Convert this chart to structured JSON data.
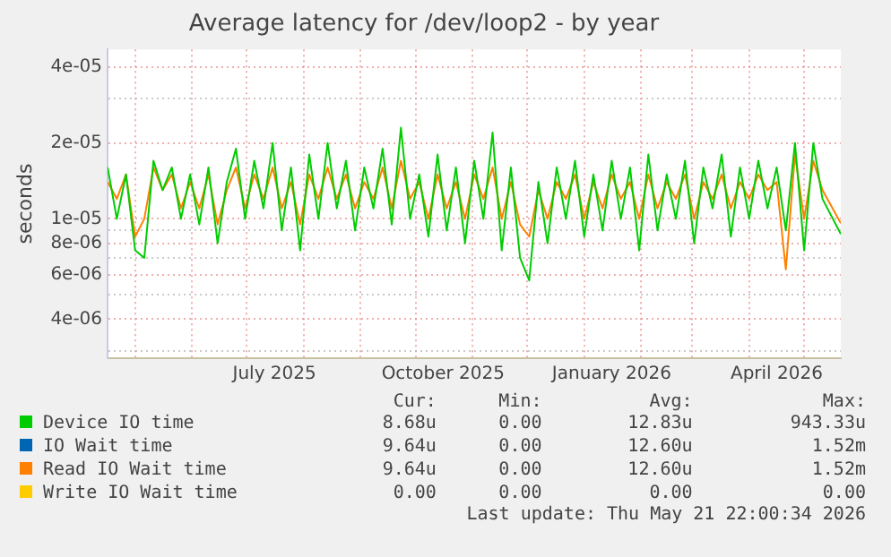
{
  "chart_data": {
    "type": "line",
    "title": "Average latency for /dev/loop2 - by year",
    "ylabel": "seconds",
    "log": "y",
    "grid": true,
    "legend": "bottom",
    "marker": "none",
    "line_style": "solid",
    "x": [
      "2025-04-16",
      "2025-04-21",
      "2025-04-26",
      "2025-05-01",
      "2025-05-06",
      "2025-05-11",
      "2025-05-16",
      "2025-05-21",
      "2025-05-26",
      "2025-05-31",
      "2025-06-05",
      "2025-06-10",
      "2025-06-15",
      "2025-06-20",
      "2025-06-25",
      "2025-06-30",
      "2025-07-05",
      "2025-07-10",
      "2025-07-15",
      "2025-07-20",
      "2025-07-25",
      "2025-07-30",
      "2025-08-04",
      "2025-08-09",
      "2025-08-14",
      "2025-08-19",
      "2025-08-24",
      "2025-08-29",
      "2025-09-03",
      "2025-09-08",
      "2025-09-13",
      "2025-09-18",
      "2025-09-23",
      "2025-09-28",
      "2025-10-03",
      "2025-10-08",
      "2025-10-13",
      "2025-10-18",
      "2025-10-23",
      "2025-10-28",
      "2025-11-02",
      "2025-11-07",
      "2025-11-12",
      "2025-11-17",
      "2025-11-22",
      "2025-11-27",
      "2025-12-02",
      "2025-12-07",
      "2025-12-12",
      "2025-12-17",
      "2025-12-22",
      "2025-12-27",
      "2026-01-01",
      "2026-01-06",
      "2026-01-11",
      "2026-01-16",
      "2026-01-21",
      "2026-01-26",
      "2026-01-31",
      "2026-02-05",
      "2026-02-10",
      "2026-02-15",
      "2026-02-20",
      "2026-02-25",
      "2026-03-02",
      "2026-03-07",
      "2026-03-12",
      "2026-03-17",
      "2026-03-22",
      "2026-03-27",
      "2026-04-01",
      "2026-04-06",
      "2026-04-11",
      "2026-04-16",
      "2026-04-21",
      "2026-04-26",
      "2026-05-01",
      "2026-05-06",
      "2026-05-11",
      "2026-05-21"
    ],
    "series": [
      {
        "name": "Device IO time",
        "color": "#00cc00",
        "values": [
          1.6e-05,
          1e-05,
          1.5e-05,
          7.5e-06,
          7e-06,
          1.7e-05,
          1.3e-05,
          1.6e-05,
          1e-05,
          1.5e-05,
          9.5e-06,
          1.6e-05,
          8e-06,
          1.4e-05,
          1.9e-05,
          1e-05,
          1.7e-05,
          1.1e-05,
          2e-05,
          9e-06,
          1.6e-05,
          7.5e-06,
          1.8e-05,
          1e-05,
          2e-05,
          1.1e-05,
          1.7e-05,
          9e-06,
          1.6e-05,
          1.1e-05,
          1.9e-05,
          9.5e-06,
          2.3e-05,
          1e-05,
          1.5e-05,
          8.5e-06,
          1.8e-05,
          9e-06,
          1.6e-05,
          8e-06,
          1.7e-05,
          1e-05,
          2.2e-05,
          7.5e-06,
          1.6e-05,
          7e-06,
          5.7e-06,
          1.4e-05,
          8e-06,
          1.6e-05,
          1e-05,
          1.7e-05,
          8.5e-06,
          1.5e-05,
          9e-06,
          1.7e-05,
          1e-05,
          1.6e-05,
          7.5e-06,
          1.8e-05,
          9e-06,
          1.5e-05,
          1e-05,
          1.7e-05,
          8e-06,
          1.6e-05,
          1.1e-05,
          1.8e-05,
          8.5e-06,
          1.6e-05,
          1e-05,
          1.7e-05,
          1.1e-05,
          1.6e-05,
          9e-06,
          2e-05,
          7.5e-06,
          2e-05,
          1.2e-05,
          8.7e-06
        ]
      },
      {
        "name": "IO Wait time",
        "color": "#0066b3",
        "values": [
          null,
          null,
          null,
          null,
          null,
          null,
          null,
          null,
          null,
          null,
          null,
          null,
          null,
          null,
          null,
          null,
          null,
          null,
          null,
          null,
          null,
          null,
          null,
          null,
          null,
          null,
          null,
          null,
          null,
          null,
          null,
          null,
          null,
          null,
          null,
          null,
          null,
          null,
          null,
          null,
          null,
          null,
          null,
          null,
          null,
          null,
          null,
          null,
          null,
          null,
          null,
          null,
          null,
          null,
          null,
          null,
          null,
          null,
          null,
          null,
          null,
          null,
          null,
          null,
          null,
          null,
          null,
          null,
          null,
          null,
          null,
          null,
          null,
          null,
          null,
          null,
          null,
          null,
          null,
          null
        ]
      },
      {
        "name": "Read IO Wait time",
        "color": "#ff8000",
        "values": [
          1.4e-05,
          1.2e-05,
          1.5e-05,
          8.5e-06,
          1e-05,
          1.6e-05,
          1.3e-05,
          1.5e-05,
          1.1e-05,
          1.4e-05,
          1.1e-05,
          1.5e-05,
          9.5e-06,
          1.3e-05,
          1.6e-05,
          1.1e-05,
          1.5e-05,
          1.2e-05,
          1.6e-05,
          1.1e-05,
          1.4e-05,
          9.5e-06,
          1.5e-05,
          1.2e-05,
          1.6e-05,
          1.2e-05,
          1.5e-05,
          1.1e-05,
          1.4e-05,
          1.2e-05,
          1.6e-05,
          1.1e-05,
          1.7e-05,
          1.2e-05,
          1.4e-05,
          1e-05,
          1.5e-05,
          1.1e-05,
          1.4e-05,
          1e-05,
          1.5e-05,
          1.2e-05,
          1.6e-05,
          1e-05,
          1.4e-05,
          9.5e-06,
          8.5e-06,
          1.3e-05,
          1e-05,
          1.4e-05,
          1.2e-05,
          1.5e-05,
          1e-05,
          1.4e-05,
          1.1e-05,
          1.5e-05,
          1.2e-05,
          1.4e-05,
          1e-05,
          1.5e-05,
          1.1e-05,
          1.4e-05,
          1.2e-05,
          1.5e-05,
          1e-05,
          1.4e-05,
          1.2e-05,
          1.5e-05,
          1.1e-05,
          1.4e-05,
          1.2e-05,
          1.5e-05,
          1.3e-05,
          1.4e-05,
          6.3e-06,
          1.8e-05,
          1e-05,
          1.7e-05,
          1.3e-05,
          9.6e-06
        ]
      },
      {
        "name": "Write IO Wait time",
        "color": "#ffcc00",
        "values": [
          null,
          null,
          null,
          null,
          null,
          null,
          null,
          null,
          null,
          null,
          null,
          null,
          null,
          null,
          null,
          null,
          null,
          null,
          null,
          null,
          null,
          null,
          null,
          null,
          null,
          null,
          null,
          null,
          null,
          null,
          null,
          null,
          null,
          null,
          null,
          null,
          null,
          null,
          null,
          null,
          null,
          null,
          null,
          null,
          null,
          null,
          null,
          null,
          null,
          null,
          null,
          null,
          null,
          null,
          null,
          null,
          null,
          null,
          null,
          null,
          null,
          null,
          null,
          null,
          null,
          null,
          null,
          null,
          null,
          null,
          null,
          null,
          null,
          null,
          null,
          null,
          null,
          null,
          null,
          null
        ]
      }
    ],
    "xlim": [
      "2025-04-16",
      "2026-05-21"
    ],
    "xticks": [
      {
        "value": "2025-05-01",
        "label": null
      },
      {
        "value": "2025-06-01",
        "label": null
      },
      {
        "value": "2025-07-01",
        "label": null
      },
      {
        "value": "2025-07-16",
        "label": "July 2025"
      },
      {
        "value": "2025-08-01",
        "label": null
      },
      {
        "value": "2025-09-01",
        "label": null
      },
      {
        "value": "2025-10-01",
        "label": null
      },
      {
        "value": "2025-10-16",
        "label": "October 2025"
      },
      {
        "value": "2025-11-01",
        "label": null
      },
      {
        "value": "2025-12-01",
        "label": null
      },
      {
        "value": "2026-01-01",
        "label": null
      },
      {
        "value": "2026-01-16",
        "label": "January 2026"
      },
      {
        "value": "2026-02-01",
        "label": null
      },
      {
        "value": "2026-03-01",
        "label": null
      },
      {
        "value": "2026-04-01",
        "label": null
      },
      {
        "value": "2026-04-16",
        "label": "April 2026"
      },
      {
        "value": "2026-05-01",
        "label": null
      }
    ],
    "ylim": [
      2.8e-06,
      4.7e-05
    ],
    "yticks": [
      {
        "value": 3e-06,
        "label": null
      },
      {
        "value": 4e-06,
        "label": "4e-06"
      },
      {
        "value": 5e-06,
        "label": null
      },
      {
        "value": 6e-06,
        "label": "6e-06"
      },
      {
        "value": 7e-06,
        "label": null
      },
      {
        "value": 8e-06,
        "label": "8e-06"
      },
      {
        "value": 9e-06,
        "label": null
      },
      {
        "value": 1e-05,
        "label": "1e-05"
      },
      {
        "value": 2e-05,
        "label": "2e-05"
      },
      {
        "value": 3e-05,
        "label": null
      },
      {
        "value": 4e-05,
        "label": "4e-05"
      }
    ],
    "annotations": [
      "Cur:",
      "Min:",
      "Avg:",
      "Max:",
      "8.68u",
      "0.00",
      "12.83u",
      "943.33u",
      "9.64u",
      "0.00",
      "12.60u",
      "1.52m",
      "9.64u",
      "0.00",
      "12.60u",
      "1.52m",
      "0.00",
      "0.00",
      "0.00",
      "0.00",
      "Last update: Thu May 21 22:00:34 2026"
    ]
  }
}
